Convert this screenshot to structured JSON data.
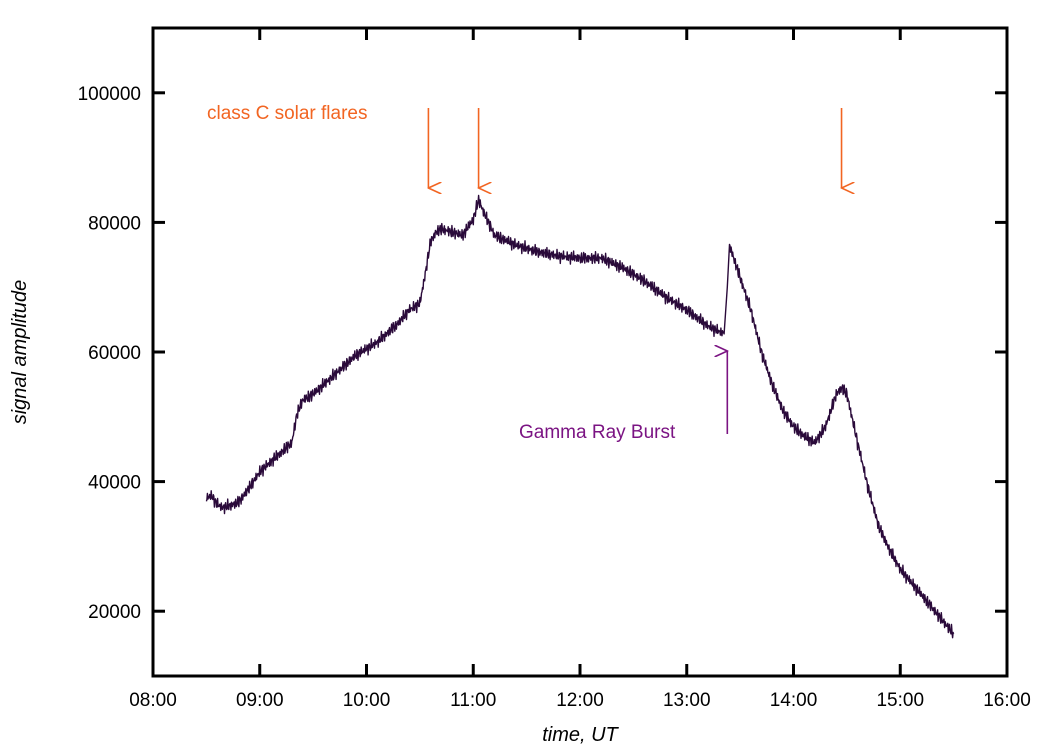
{
  "chart_data": {
    "type": "line",
    "title": "",
    "xlabel": "time, UT",
    "ylabel": "signal amplitude",
    "x_unit": "hours UT",
    "xlim": [
      8.0,
      16.0
    ],
    "ylim": [
      10000,
      110000
    ],
    "x_ticks": [
      {
        "value": 8,
        "label": "08:00"
      },
      {
        "value": 9,
        "label": "09:00"
      },
      {
        "value": 10,
        "label": "10:00"
      },
      {
        "value": 11,
        "label": "11:00"
      },
      {
        "value": 12,
        "label": "12:00"
      },
      {
        "value": 13,
        "label": "13:00"
      },
      {
        "value": 14,
        "label": "14:00"
      },
      {
        "value": 15,
        "label": "15:00"
      },
      {
        "value": 16,
        "label": "16:00"
      }
    ],
    "y_ticks": [
      {
        "value": 20000,
        "label": "20000"
      },
      {
        "value": 40000,
        "label": "40000"
      },
      {
        "value": 60000,
        "label": "60000"
      },
      {
        "value": 80000,
        "label": "80000"
      },
      {
        "value": 100000,
        "label": "100000"
      }
    ],
    "grid": false,
    "series": [
      {
        "name": "signal amplitude",
        "color": "#2a0a3a",
        "x": [
          8.5,
          8.55,
          8.6,
          8.65,
          8.7,
          8.8,
          8.9,
          9.0,
          9.1,
          9.2,
          9.3,
          9.35,
          9.4,
          9.5,
          9.6,
          9.7,
          9.8,
          9.9,
          10.0,
          10.1,
          10.2,
          10.3,
          10.4,
          10.45,
          10.5,
          10.55,
          10.6,
          10.65,
          10.7,
          10.8,
          10.9,
          11.0,
          11.05,
          11.1,
          11.2,
          11.4,
          11.6,
          11.8,
          12.0,
          12.2,
          12.4,
          12.6,
          12.8,
          13.0,
          13.2,
          13.35,
          13.38,
          13.4,
          13.45,
          13.5,
          13.6,
          13.7,
          13.8,
          13.9,
          14.0,
          14.1,
          14.2,
          14.3,
          14.4,
          14.45,
          14.5,
          14.6,
          14.7,
          14.8,
          14.9,
          15.0,
          15.1,
          15.2,
          15.3,
          15.4,
          15.5
        ],
        "values": [
          37500,
          37800,
          36500,
          36000,
          36200,
          36800,
          39000,
          41500,
          43000,
          44500,
          46000,
          50500,
          52500,
          53500,
          55000,
          56500,
          58000,
          59500,
          60500,
          61500,
          63000,
          64500,
          66500,
          67000,
          67500,
          72000,
          77000,
          78500,
          79000,
          78500,
          78000,
          80500,
          83500,
          81500,
          78000,
          76500,
          75500,
          74800,
          74500,
          74500,
          73000,
          71000,
          68500,
          66500,
          64000,
          62800,
          70000,
          76500,
          74000,
          71500,
          66500,
          60000,
          55000,
          51000,
          48500,
          47000,
          46000,
          48500,
          53500,
          54500,
          53500,
          46000,
          39000,
          33000,
          29500,
          26500,
          24500,
          22500,
          20500,
          18500,
          16500
        ]
      }
    ],
    "annotations": [
      {
        "text": "class C solar flares",
        "color": "#f26522",
        "arrows_at_x": [
          10.58,
          11.05,
          14.45
        ],
        "arrow_direction": "down"
      },
      {
        "text": "Gamma Ray Burst",
        "color": "#7b1483",
        "arrows_at_x": [
          13.38
        ],
        "arrow_direction": "up"
      }
    ]
  }
}
